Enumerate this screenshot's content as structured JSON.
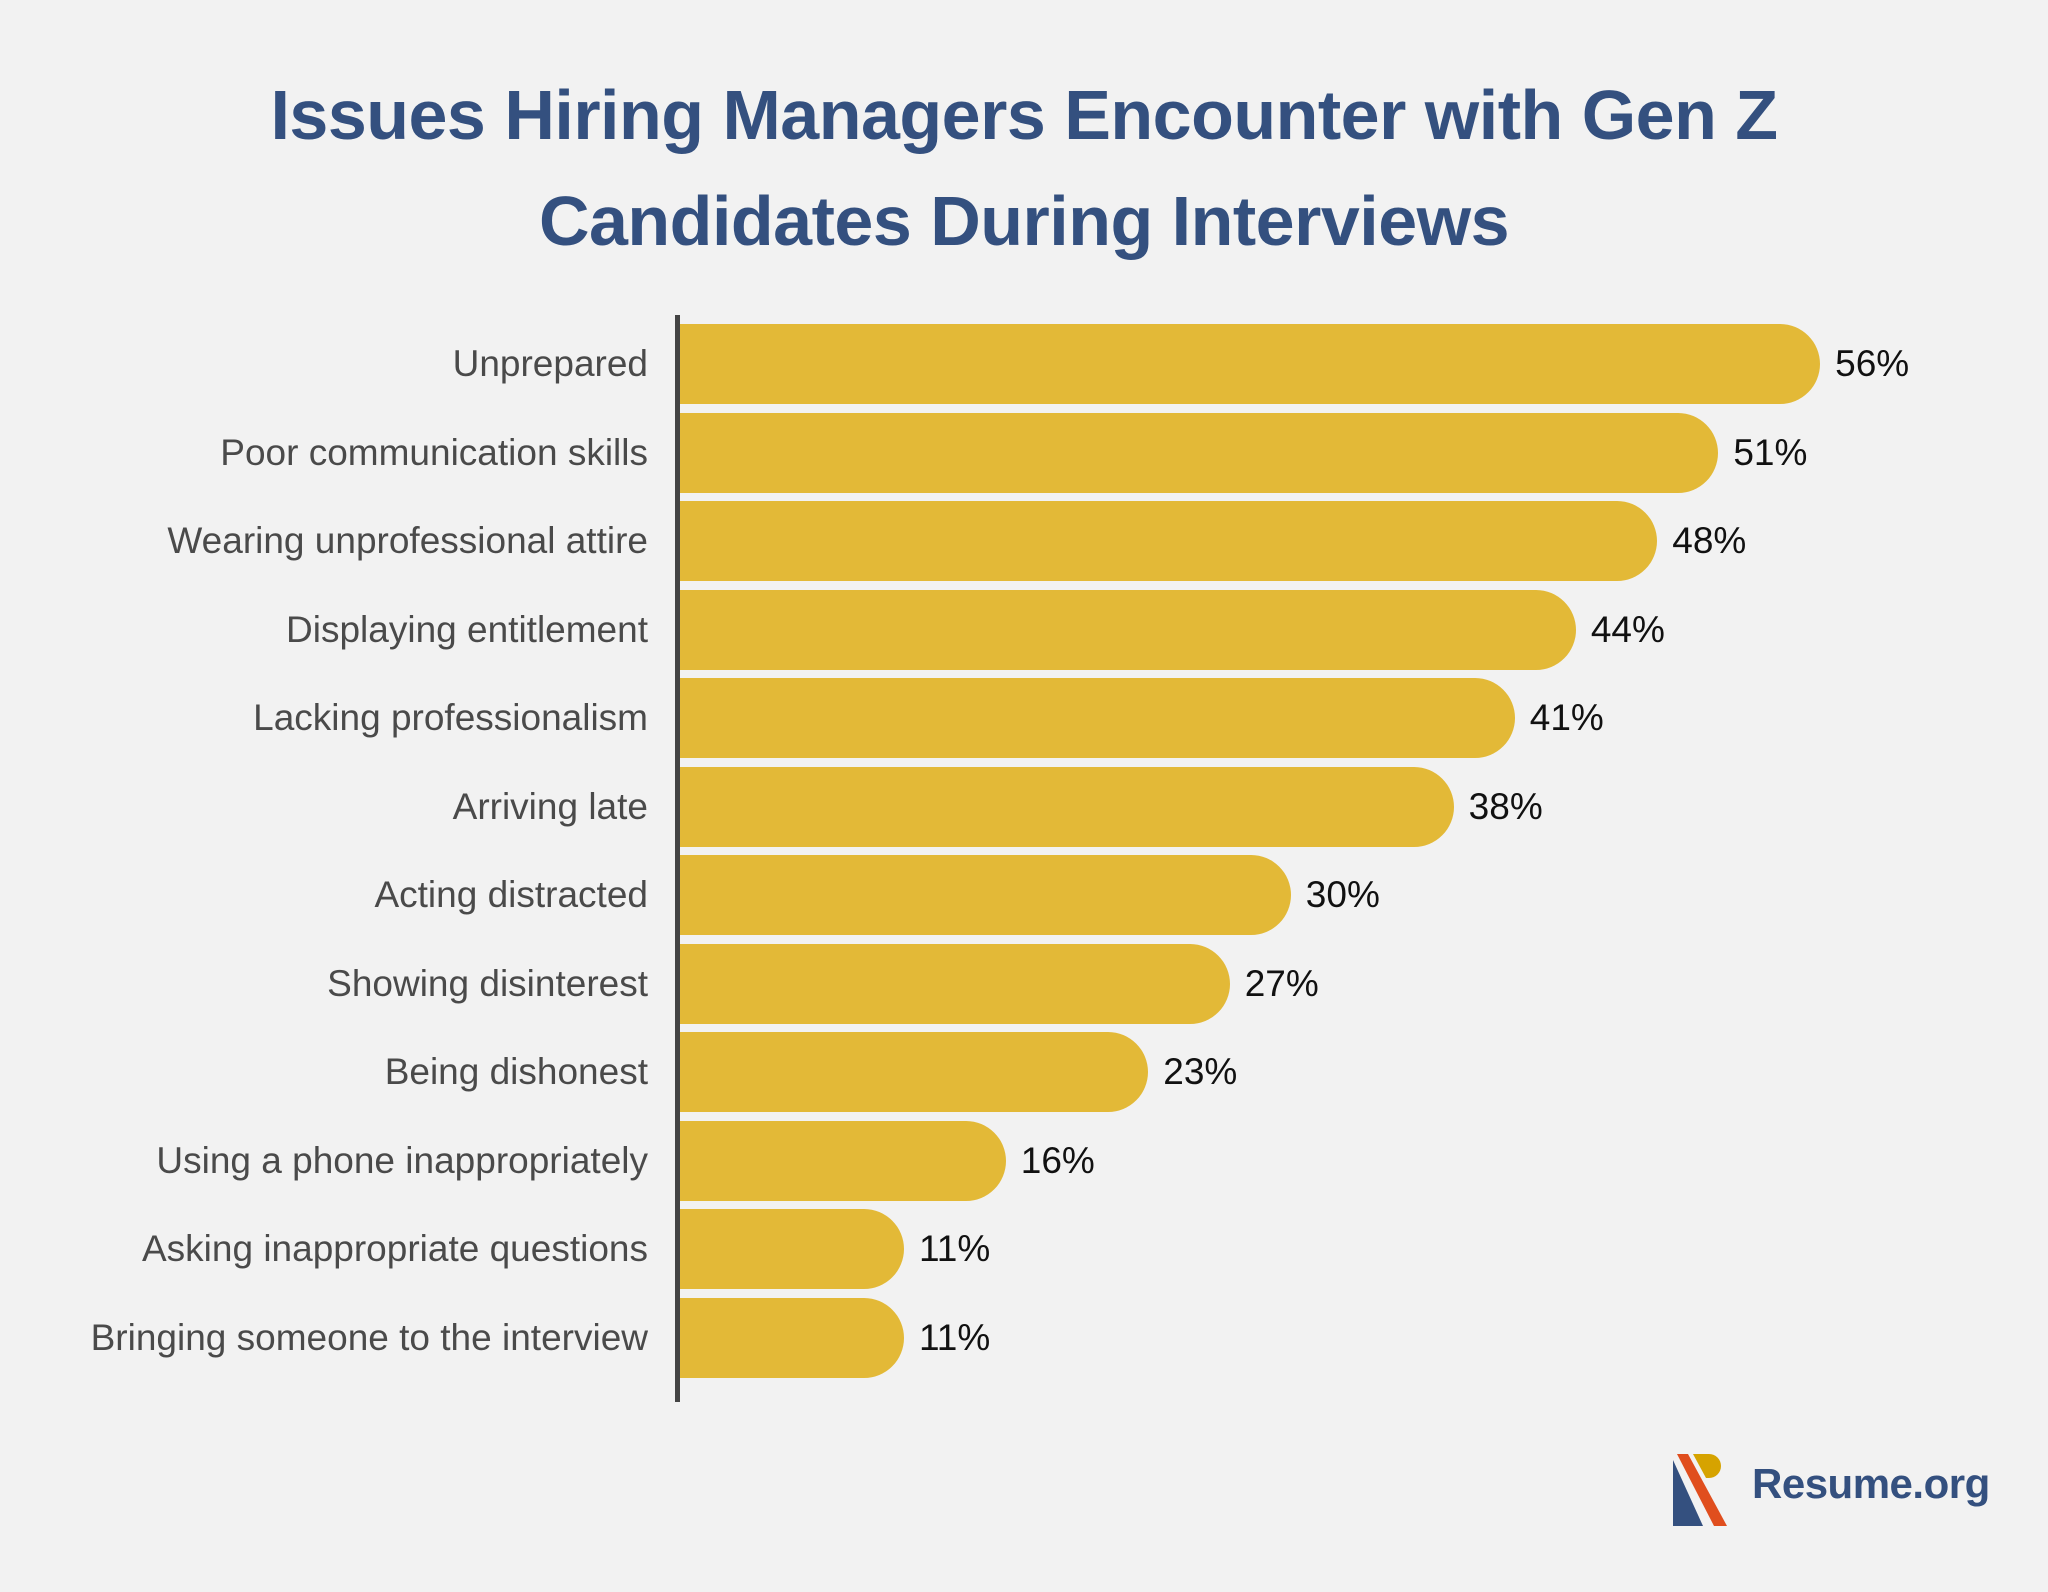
{
  "title_line1": "Issues Hiring Managers Encounter with Gen Z",
  "title_line2": "Candidates During Interviews",
  "brand": {
    "name": "Resume.org",
    "logo_icon": "resume-org-logo-icon"
  },
  "colors": {
    "bar": "#e3b937",
    "title": "#34507f",
    "axis": "#444444",
    "background": "#f2f2f2",
    "logo_blue": "#34507f",
    "logo_orange": "#e04e1e",
    "logo_gold": "#d6a300"
  },
  "chart_data": {
    "type": "bar",
    "orientation": "horizontal",
    "title": "Issues Hiring Managers Encounter with Gen Z Candidates During Interviews",
    "xlabel": "",
    "ylabel": "",
    "unit": "%",
    "grid": false,
    "legend": null,
    "xlim": [
      0,
      60
    ],
    "categories": [
      "Unprepared",
      "Poor communication skills",
      "Wearing unprofessional attire",
      "Displaying entitlement",
      "Lacking professionalism",
      "Arriving late",
      "Acting distracted",
      "Showing disinterest",
      "Being dishonest",
      "Using a phone inappropriately",
      "Asking inappropriate questions",
      "Bringing someone to the interview"
    ],
    "values": [
      56,
      51,
      48,
      44,
      41,
      38,
      30,
      27,
      23,
      16,
      11,
      11
    ],
    "value_labels": [
      "56%",
      "51%",
      "48%",
      "44%",
      "41%",
      "38%",
      "30%",
      "27%",
      "23%",
      "16%",
      "11%",
      "11%"
    ]
  }
}
